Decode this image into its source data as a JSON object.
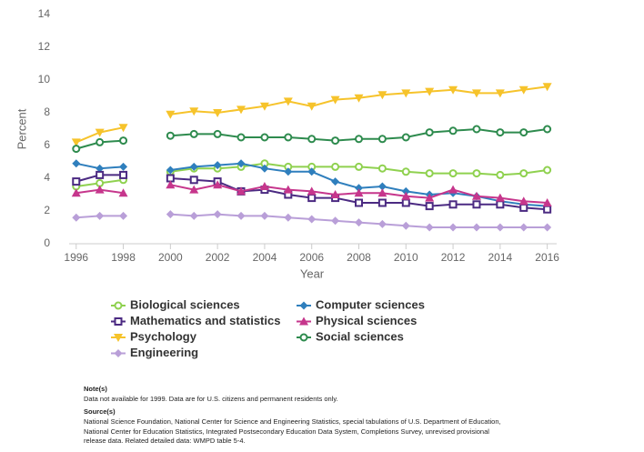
{
  "chart_data": {
    "type": "line",
    "x_label": "Year",
    "y_label": "Percent",
    "x": [
      1996,
      1997,
      1998,
      1999,
      2000,
      2001,
      2002,
      2003,
      2004,
      2005,
      2006,
      2007,
      2008,
      2009,
      2010,
      2011,
      2012,
      2013,
      2014,
      2015,
      2016
    ],
    "xlim": [
      1995.7,
      2016.4
    ],
    "xticks": [
      1996,
      1998,
      2000,
      2002,
      2004,
      2006,
      2008,
      2010,
      2012,
      2014,
      2016
    ],
    "ylim": [
      0,
      14
    ],
    "yticks": [
      0,
      2,
      4,
      6,
      8,
      10,
      12,
      14
    ],
    "grid": false,
    "series": [
      {
        "name": "Biological sciences",
        "color": "#8fd14f",
        "marker": "circle",
        "values": [
          3.5,
          3.7,
          3.9,
          null,
          4.4,
          4.6,
          4.6,
          4.7,
          4.9,
          4.7,
          4.7,
          4.7,
          4.7,
          4.6,
          4.4,
          4.3,
          4.3,
          4.3,
          4.2,
          4.3,
          4.5
        ]
      },
      {
        "name": "Computer sciences",
        "color": "#2f7fbd",
        "marker": "diamond",
        "values": [
          4.9,
          4.6,
          4.7,
          null,
          4.5,
          4.7,
          4.8,
          4.9,
          4.6,
          4.4,
          4.4,
          3.8,
          3.4,
          3.5,
          3.2,
          3.0,
          3.1,
          2.9,
          2.6,
          2.4,
          2.3
        ]
      },
      {
        "name": "Mathematics and statistics",
        "color": "#4b2a82",
        "marker": "square",
        "values": [
          3.8,
          4.2,
          4.2,
          null,
          4.0,
          3.9,
          3.8,
          3.2,
          3.3,
          3.0,
          2.8,
          2.8,
          2.5,
          2.5,
          2.5,
          2.3,
          2.4,
          2.4,
          2.4,
          2.2,
          2.1
        ]
      },
      {
        "name": "Physical sciences",
        "color": "#c6368c",
        "marker": "triangle-up",
        "values": [
          3.1,
          3.3,
          3.1,
          null,
          3.6,
          3.3,
          3.6,
          3.2,
          3.5,
          3.3,
          3.2,
          3.0,
          3.1,
          3.1,
          2.9,
          2.8,
          3.3,
          2.9,
          2.8,
          2.6,
          2.5
        ]
      },
      {
        "name": "Psychology",
        "color": "#f6c32b",
        "marker": "triangle-down",
        "values": [
          6.2,
          6.8,
          7.1,
          null,
          7.9,
          8.1,
          8.0,
          8.2,
          8.4,
          8.7,
          8.4,
          8.8,
          8.9,
          9.1,
          9.2,
          9.3,
          9.4,
          9.2,
          9.2,
          9.4,
          9.6
        ]
      },
      {
        "name": "Social sciences",
        "color": "#2e8b4e",
        "marker": "circle",
        "values": [
          5.8,
          6.2,
          6.3,
          null,
          6.6,
          6.7,
          6.7,
          6.5,
          6.5,
          6.5,
          6.4,
          6.3,
          6.4,
          6.4,
          6.5,
          6.8,
          6.9,
          7.0,
          6.8,
          6.8,
          7.0
        ]
      },
      {
        "name": "Engineering",
        "color": "#b99fd8",
        "marker": "diamond",
        "values": [
          1.6,
          1.7,
          1.7,
          null,
          1.8,
          1.7,
          1.8,
          1.7,
          1.7,
          1.6,
          1.5,
          1.4,
          1.3,
          1.2,
          1.1,
          1.0,
          1.0,
          1.0,
          1.0,
          1.0,
          1.0
        ]
      }
    ],
    "note_heading": "Note(s)",
    "note": "Data not available for 1999. Data are for U.S. citizens and permanent residents only.",
    "source_heading": "Source(s)",
    "source": "National Science Foundation, National Center for Science and Engineering Statistics, special tabulations of U.S. Department of Education, National Center for Education Statistics, Integrated Postsecondary Education Data System, Completions Survey, unrevised provisional release data. Related detailed data: WMPD table 5-4."
  }
}
